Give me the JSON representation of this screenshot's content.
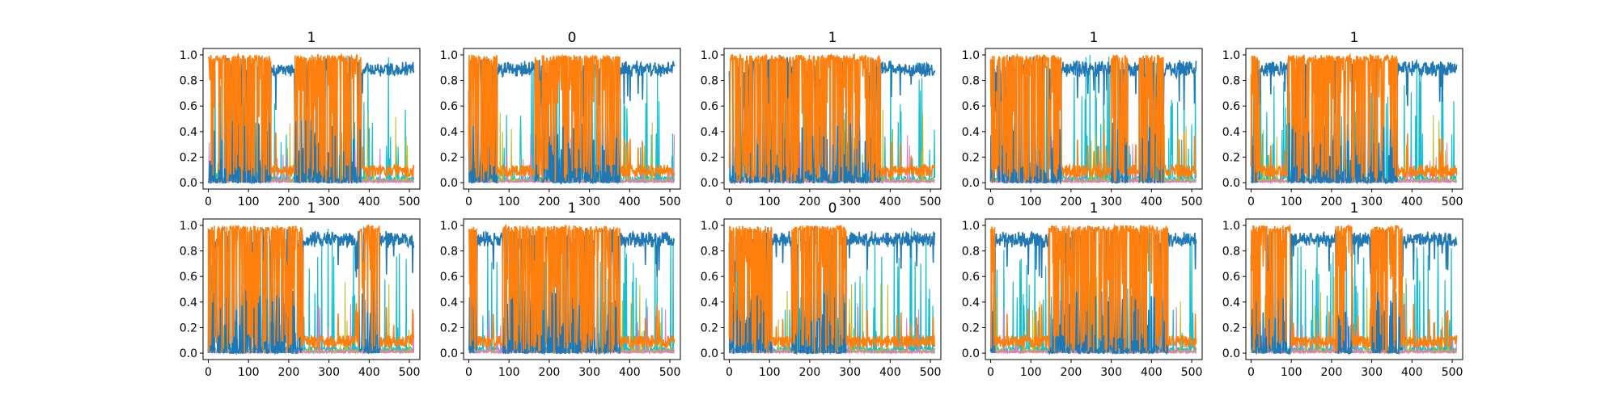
{
  "chart_data": {
    "type": "line",
    "layout": "2x5 grid of small-multiple line charts",
    "shared_axes": {
      "xlim": [
        -13,
        526
      ],
      "ylim": [
        -0.05,
        1.05
      ],
      "xticks": [
        0,
        100,
        200,
        300,
        400,
        500
      ],
      "yticks": [
        0.0,
        0.2,
        0.4,
        0.6,
        0.8,
        1.0
      ],
      "ytick_labels": [
        "0.0",
        "0.2",
        "0.4",
        "0.6",
        "0.8",
        "1.0"
      ],
      "grid": false
    },
    "colors": {
      "blue": "#1f77b4",
      "orange": "#ff7f0e",
      "cyan": "#17becf",
      "olive": "#bcbd22",
      "pink": "#e377c2",
      "purple": "#9467bd",
      "green": "#2ca02c",
      "red": "#d62728"
    },
    "series_description": "Each panel overlays many stacked probability series over 512 samples; dominant series are blue (class 0) and orange (class 1), with minor series in cyan, olive, pink and purple.",
    "panels": [
      {
        "title": "1",
        "orange_high_segments": [
          [
            0,
            155
          ],
          [
            215,
            380
          ]
        ]
      },
      {
        "title": "0",
        "orange_high_segments": [
          [
            0,
            70
          ],
          [
            165,
            375
          ]
        ]
      },
      {
        "title": "1",
        "orange_high_segments": [
          [
            0,
            375
          ]
        ]
      },
      {
        "title": "1",
        "orange_high_segments": [
          [
            0,
            175
          ],
          [
            300,
            340
          ],
          [
            370,
            430
          ]
        ]
      },
      {
        "title": "1",
        "orange_high_segments": [
          [
            0,
            20
          ],
          [
            90,
            365
          ]
        ]
      },
      {
        "title": "1",
        "orange_high_segments": [
          [
            0,
            235
          ],
          [
            375,
            425
          ]
        ]
      },
      {
        "title": "1",
        "orange_high_segments": [
          [
            0,
            20
          ],
          [
            85,
            375
          ]
        ]
      },
      {
        "title": "0",
        "orange_high_segments": [
          [
            0,
            105
          ],
          [
            155,
            290
          ]
        ]
      },
      {
        "title": "1",
        "orange_high_segments": [
          [
            0,
            10
          ],
          [
            145,
            440
          ]
        ]
      },
      {
        "title": "1",
        "orange_high_segments": [
          [
            0,
            100
          ],
          [
            210,
            250
          ],
          [
            295,
            375
          ]
        ]
      }
    ]
  }
}
